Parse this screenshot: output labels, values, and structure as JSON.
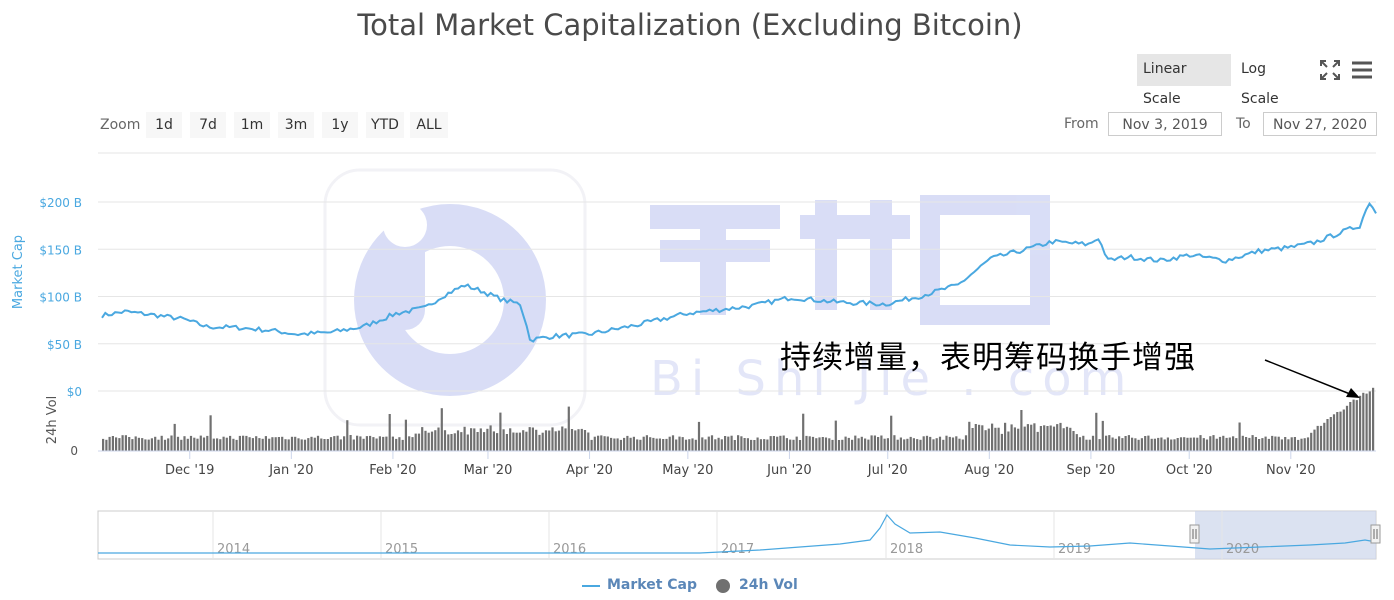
{
  "title": "Total Market Capitalization (Excluding Bitcoin)",
  "toolbar": {
    "linear_label": "Linear Scale",
    "log_label": "Log Scale",
    "active_scale": "linear"
  },
  "zoom": {
    "label": "Zoom",
    "buttons": [
      "1d",
      "7d",
      "1m",
      "3m",
      "1y",
      "YTD",
      "ALL"
    ]
  },
  "range": {
    "from_label": "From",
    "from_value": "Nov 3, 2019",
    "to_label": "To",
    "to_value": "Nov 27, 2020"
  },
  "annotation": "持续增量，表明筹码换手增强",
  "legend": [
    {
      "name": "Market Cap",
      "color": "#4aa8e0",
      "marker": "line"
    },
    {
      "name": "24h Vol",
      "color": "#707070",
      "marker": "circle"
    }
  ],
  "chart_data": {
    "type": "line",
    "x_range": [
      "2019-11-03",
      "2020-11-27"
    ],
    "month_ticks": [
      "Dec '19",
      "Jan '20",
      "Feb '20",
      "Mar '20",
      "Apr '20",
      "May '20",
      "Jun '20",
      "Jul '20",
      "Aug '20",
      "Sep '20",
      "Oct '20",
      "Nov '20"
    ],
    "market_cap": {
      "axis_title": "Market Cap",
      "y_ticks": [
        "$0",
        "$50 B",
        "$100 B",
        "$150 B",
        "$200 B"
      ],
      "ylim": [
        0,
        200
      ],
      "unit": "B USD",
      "color": "#4aa8e0",
      "points": [
        [
          "2019-11-03",
          80
        ],
        [
          "2019-11-10",
          84
        ],
        [
          "2019-11-20",
          80
        ],
        [
          "2019-11-28",
          76
        ],
        [
          "2019-12-05",
          68
        ],
        [
          "2019-12-15",
          67
        ],
        [
          "2019-12-25",
          64
        ],
        [
          "2020-01-02",
          60
        ],
        [
          "2020-01-12",
          62
        ],
        [
          "2020-01-22",
          68
        ],
        [
          "2020-02-01",
          82
        ],
        [
          "2020-02-10",
          88
        ],
        [
          "2020-02-15",
          100
        ],
        [
          "2020-02-22",
          112
        ],
        [
          "2020-02-27",
          106
        ],
        [
          "2020-03-05",
          96
        ],
        [
          "2020-03-10",
          92
        ],
        [
          "2020-03-12",
          70
        ],
        [
          "2020-03-13",
          54
        ],
        [
          "2020-03-20",
          58
        ],
        [
          "2020-03-31",
          60
        ],
        [
          "2020-04-15",
          70
        ],
        [
          "2020-04-30",
          82
        ],
        [
          "2020-05-10",
          86
        ],
        [
          "2020-05-20",
          90
        ],
        [
          "2020-06-01",
          99
        ],
        [
          "2020-06-15",
          94
        ],
        [
          "2020-06-30",
          92
        ],
        [
          "2020-07-10",
          100
        ],
        [
          "2020-07-22",
          112
        ],
        [
          "2020-08-01",
          140
        ],
        [
          "2020-08-12",
          150
        ],
        [
          "2020-08-20",
          158
        ],
        [
          "2020-08-31",
          155
        ],
        [
          "2020-09-03",
          162
        ],
        [
          "2020-09-06",
          138
        ],
        [
          "2020-09-12",
          142
        ],
        [
          "2020-09-22",
          138
        ],
        [
          "2020-10-01",
          144
        ],
        [
          "2020-10-12",
          138
        ],
        [
          "2020-10-22",
          148
        ],
        [
          "2020-11-01",
          152
        ],
        [
          "2020-11-08",
          157
        ],
        [
          "2020-11-18",
          170
        ],
        [
          "2020-11-22",
          175
        ],
        [
          "2020-11-25",
          200
        ],
        [
          "2020-11-26",
          195
        ],
        [
          "2020-11-27",
          188
        ]
      ]
    },
    "volume": {
      "axis_title": "24h Vol",
      "y_ticks": [
        "0"
      ],
      "color": "#707070",
      "note": "relative daily volume, rising sharply at the end of Nov 2020"
    },
    "navigator": {
      "years": [
        "2014",
        "2015",
        "2016",
        "2017",
        "2018",
        "2019",
        "2020"
      ],
      "selected_range": [
        "2019-11-03",
        "2020-11-27"
      ]
    }
  }
}
